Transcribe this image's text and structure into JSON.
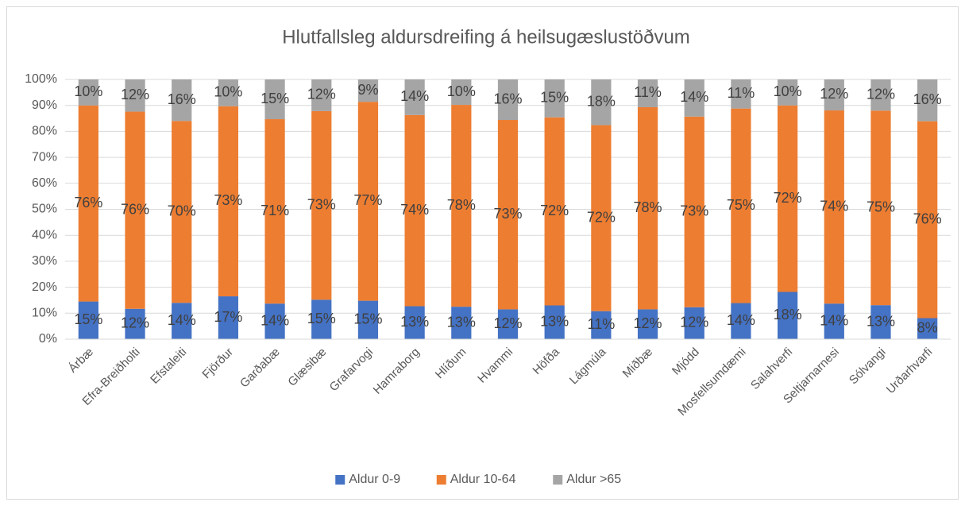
{
  "chart_data": {
    "type": "stacked_bar",
    "title": "Hlutfallsleg aldursdreifing á heilsugæslustöðvum",
    "categories": [
      "Árbæ",
      "Efra-Breiðholti",
      "Efstaleiti",
      "Fjörður",
      "Garðabæ",
      "Glæsibæ",
      "Grafarvogi",
      "Hamraborg",
      "Hlíðum",
      "Hvammi",
      "Höfða",
      "Lágmúla",
      "Miðbæ",
      "Mjódd",
      "Mosfellsumdæmi",
      "Salahverfi",
      "Seltjarnarnesi",
      "Sólvangi",
      "Urðarhvarfi"
    ],
    "series": [
      {
        "name": "Aldur 0-9",
        "color": "#4472c4",
        "values": [
          14.5,
          11.7,
          14,
          16.5,
          13.7,
          15.2,
          14.8,
          12.7,
          12.5,
          11.5,
          13,
          10.8,
          11.5,
          12.3,
          13.9,
          18.2,
          13.7,
          13.1,
          8.1
        ],
        "value_labels": [
          "15%",
          "12%",
          "14%",
          "17%",
          "14%",
          "15%",
          "15%",
          "13%",
          "13%",
          "12%",
          "13%",
          "11%",
          "12%",
          "12%",
          "14%",
          "18%",
          "14%",
          "13%",
          "8%"
        ]
      },
      {
        "name": "Aldur 10-64",
        "color": "#ed7d31",
        "values": [
          75.5,
          75.9,
          70,
          73.2,
          71,
          72.6,
          76.6,
          73.6,
          77.7,
          72.9,
          72.4,
          71.6,
          77.8,
          73.4,
          74.9,
          71.8,
          74.4,
          74.9,
          75.8
        ],
        "value_labels": [
          "76%",
          "76%",
          "70%",
          "73%",
          "71%",
          "73%",
          "77%",
          "74%",
          "78%",
          "73%",
          "72%",
          "72%",
          "78%",
          "73%",
          "75%",
          "72%",
          "74%",
          "75%",
          "76%"
        ]
      },
      {
        "name": "Aldur >65",
        "color": "#a5a5a5",
        "values": [
          10,
          12.4,
          16,
          10.3,
          15.3,
          12.2,
          8.6,
          13.7,
          9.8,
          15.6,
          14.6,
          17.6,
          10.7,
          14.3,
          11.2,
          10,
          11.9,
          12,
          16.1
        ],
        "value_labels": [
          "10%",
          "12%",
          "16%",
          "10%",
          "15%",
          "12%",
          "9%",
          "14%",
          "10%",
          "16%",
          "15%",
          "18%",
          "11%",
          "14%",
          "11%",
          "10%",
          "12%",
          "12%",
          "16%"
        ]
      }
    ],
    "ylim": [
      0,
      100
    ],
    "yticks": [
      {
        "value": 0,
        "label": "0%"
      },
      {
        "value": 10,
        "label": "10%"
      },
      {
        "value": 20,
        "label": "20%"
      },
      {
        "value": 30,
        "label": "30%"
      },
      {
        "value": 40,
        "label": "40%"
      },
      {
        "value": 50,
        "label": "50%"
      },
      {
        "value": 60,
        "label": "60%"
      },
      {
        "value": 70,
        "label": "70%"
      },
      {
        "value": 80,
        "label": "80%"
      },
      {
        "value": 90,
        "label": "90%"
      },
      {
        "value": 100,
        "label": "100%"
      }
    ],
    "grid": true,
    "legend": "bottom"
  }
}
